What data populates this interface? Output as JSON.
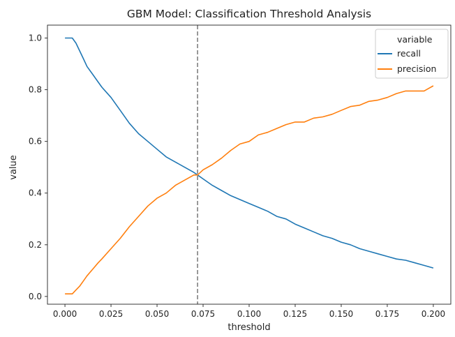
{
  "chart_data": {
    "type": "line",
    "title": "GBM Model: Classification Threshold Analysis",
    "xlabel": "threshold",
    "ylabel": "value",
    "xlim": [
      -0.0095,
      0.2095
    ],
    "ylim": [
      -0.03,
      1.05
    ],
    "xticks": [
      "0.000",
      "0.025",
      "0.050",
      "0.075",
      "0.100",
      "0.125",
      "0.150",
      "0.175",
      "0.200"
    ],
    "yticks": [
      "0.0",
      "0.2",
      "0.4",
      "0.6",
      "0.8",
      "1.0"
    ],
    "grid": false,
    "legend": {
      "title": "variable",
      "placement": "top-right"
    },
    "vline": {
      "x": 0.072,
      "style": "dashed",
      "color": "#7f7f7f"
    },
    "series": [
      {
        "name": "recall",
        "color": "#1f77b4",
        "x": [
          0.0,
          0.002,
          0.004,
          0.006,
          0.008,
          0.01,
          0.012,
          0.015,
          0.018,
          0.02,
          0.025,
          0.03,
          0.035,
          0.04,
          0.045,
          0.05,
          0.055,
          0.06,
          0.065,
          0.07,
          0.072,
          0.075,
          0.08,
          0.085,
          0.09,
          0.095,
          0.1,
          0.105,
          0.11,
          0.115,
          0.12,
          0.125,
          0.13,
          0.135,
          0.14,
          0.145,
          0.15,
          0.155,
          0.16,
          0.165,
          0.17,
          0.175,
          0.18,
          0.185,
          0.19,
          0.195,
          0.2
        ],
        "values": [
          1.0,
          1.0,
          1.0,
          0.98,
          0.95,
          0.92,
          0.89,
          0.86,
          0.83,
          0.81,
          0.77,
          0.72,
          0.67,
          0.63,
          0.6,
          0.57,
          0.54,
          0.52,
          0.5,
          0.48,
          0.47,
          0.455,
          0.43,
          0.41,
          0.39,
          0.375,
          0.36,
          0.345,
          0.33,
          0.31,
          0.3,
          0.28,
          0.265,
          0.25,
          0.235,
          0.225,
          0.21,
          0.2,
          0.185,
          0.175,
          0.165,
          0.155,
          0.145,
          0.14,
          0.13,
          0.12,
          0.11
        ]
      },
      {
        "name": "precision",
        "color": "#ff7f0e",
        "x": [
          0.0,
          0.002,
          0.004,
          0.006,
          0.008,
          0.01,
          0.012,
          0.015,
          0.018,
          0.02,
          0.025,
          0.03,
          0.035,
          0.04,
          0.045,
          0.05,
          0.055,
          0.06,
          0.065,
          0.07,
          0.072,
          0.075,
          0.08,
          0.085,
          0.09,
          0.095,
          0.1,
          0.105,
          0.11,
          0.115,
          0.12,
          0.125,
          0.13,
          0.135,
          0.14,
          0.145,
          0.15,
          0.155,
          0.16,
          0.165,
          0.17,
          0.175,
          0.18,
          0.185,
          0.19,
          0.195,
          0.2
        ],
        "values": [
          0.01,
          0.01,
          0.01,
          0.025,
          0.04,
          0.06,
          0.08,
          0.105,
          0.13,
          0.145,
          0.185,
          0.225,
          0.27,
          0.31,
          0.35,
          0.38,
          0.4,
          0.43,
          0.45,
          0.47,
          0.47,
          0.49,
          0.51,
          0.535,
          0.565,
          0.59,
          0.6,
          0.625,
          0.635,
          0.65,
          0.665,
          0.675,
          0.675,
          0.69,
          0.695,
          0.705,
          0.72,
          0.735,
          0.74,
          0.755,
          0.76,
          0.77,
          0.785,
          0.795,
          0.795,
          0.795,
          0.815
        ]
      }
    ]
  }
}
